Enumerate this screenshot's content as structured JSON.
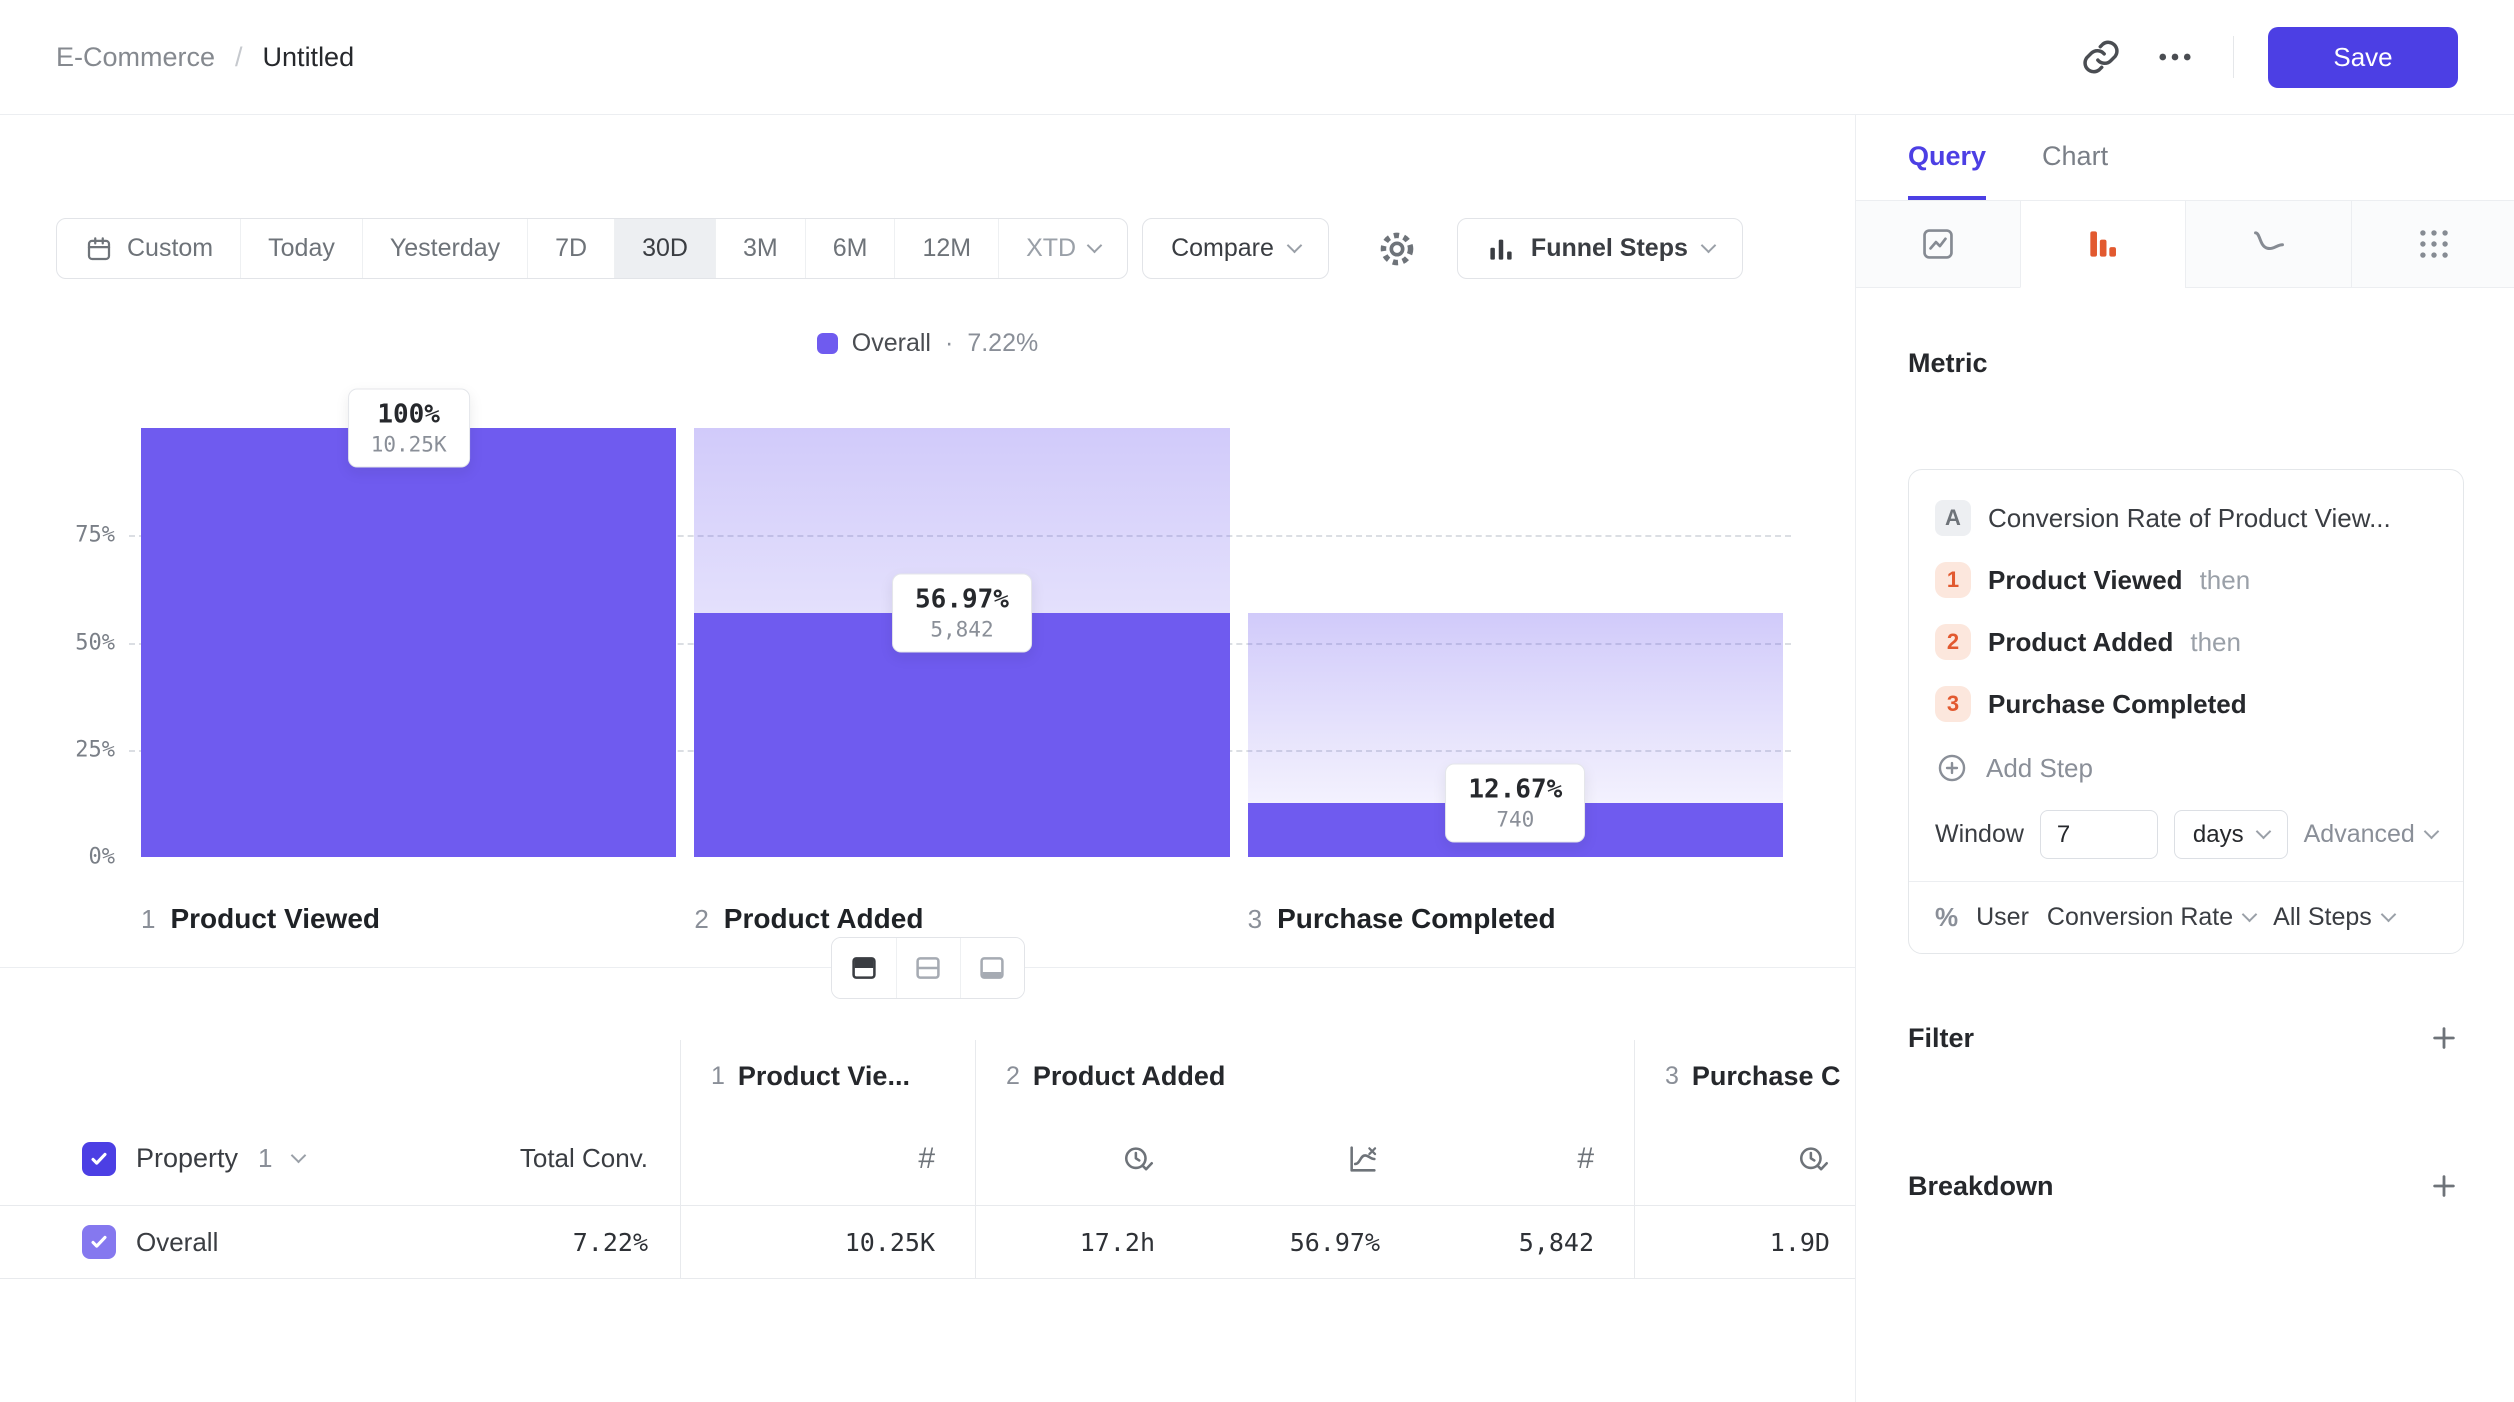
{
  "colors": {
    "accent": "#4C3FE4",
    "bar": "#6F5BEF",
    "step_orange": "#E2592F"
  },
  "header": {
    "breadcrumb": {
      "parent": "E-Commerce",
      "separator": "/",
      "current": "Untitled"
    },
    "save_label": "Save"
  },
  "toolbar": {
    "ranges": [
      {
        "label": "Custom"
      },
      {
        "label": "Today"
      },
      {
        "label": "Yesterday"
      },
      {
        "label": "7D"
      },
      {
        "label": "30D",
        "selected": true
      },
      {
        "label": "3M"
      },
      {
        "label": "6M"
      },
      {
        "label": "12M"
      },
      {
        "label": "XTD",
        "dropdown": true
      }
    ],
    "compare_label": "Compare",
    "view_type_label": "Funnel Steps"
  },
  "legend": {
    "series": "Overall",
    "separator": "·",
    "value": "7.22%"
  },
  "chart_data": {
    "type": "bar",
    "subtype": "funnel-steps",
    "series_name": "Overall",
    "overall_conversion": "7.22%",
    "steps": [
      {
        "index": "1",
        "name": "Product Viewed",
        "percent": 100,
        "percent_label": "100%",
        "count_label": "10.25K"
      },
      {
        "index": "2",
        "name": "Product Added",
        "percent": 56.97,
        "percent_label": "56.97%",
        "count_label": "5,842"
      },
      {
        "index": "3",
        "name": "Purchase Completed",
        "percent": 12.67,
        "percent_label": "12.67%",
        "count_label": "740"
      }
    ],
    "yticks": [
      "75%",
      "50%",
      "25%",
      "0%"
    ],
    "ylim": [
      0,
      100
    ],
    "grid": "dashed horizontal lines at 25, 50, 75"
  },
  "view_toggles": [
    "table-below",
    "table-split",
    "table-only"
  ],
  "table": {
    "property": {
      "label": "Property",
      "number": "1"
    },
    "total_header": "Total Conv.",
    "hash_glyph": "#",
    "groups": [
      {
        "index": "1",
        "label": "Product Vie..."
      },
      {
        "index": "2",
        "label": "Product Added"
      },
      {
        "index": "3",
        "label": "Purchase C"
      }
    ],
    "sub_icons": [
      "hash",
      "clock-check",
      "conversion-chart",
      "hash",
      "clock-check"
    ],
    "row": {
      "name": "Overall",
      "total": "7.22%",
      "values": [
        "10.25K",
        "17.2h",
        "56.97%",
        "5,842",
        "1.9D"
      ]
    }
  },
  "sidebar": {
    "tabs": [
      {
        "label": "Query",
        "active": true
      },
      {
        "label": "Chart"
      }
    ],
    "chart_type_tabs": [
      "insights",
      "funnels",
      "retention",
      "flows"
    ],
    "active_chart_type": "funnels",
    "metric_heading": "Metric",
    "metric": {
      "badge": "A",
      "name": "Conversion Rate of Product View...",
      "steps": [
        {
          "index": "1",
          "name": "Product Viewed",
          "suffix": "then"
        },
        {
          "index": "2",
          "name": "Product Added",
          "suffix": "then"
        },
        {
          "index": "3",
          "name": "Purchase Completed",
          "suffix": ""
        }
      ],
      "add_step_label": "Add Step",
      "window": {
        "label": "Window",
        "value": "7",
        "unit": "days",
        "advanced_label": "Advanced"
      },
      "measure": {
        "prefix": "%",
        "entity": "User",
        "metric": "Conversion Rate",
        "scope": "All Steps"
      }
    },
    "filter_heading": "Filter",
    "breakdown_heading": "Breakdown"
  }
}
